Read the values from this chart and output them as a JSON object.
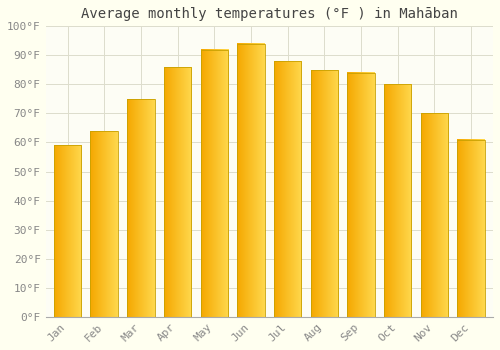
{
  "title": "Average monthly temperatures (°F ) in Mahāban",
  "months": [
    "Jan",
    "Feb",
    "Mar",
    "Apr",
    "May",
    "Jun",
    "Jul",
    "Aug",
    "Sep",
    "Oct",
    "Nov",
    "Dec"
  ],
  "values": [
    59,
    64,
    75,
    86,
    92,
    94,
    88,
    85,
    84,
    80,
    70,
    61
  ],
  "bar_color_left": "#F5A800",
  "bar_color_right": "#FFD84D",
  "bar_edge_color": "#C8A000",
  "background_color": "#FFFFF0",
  "plot_bg_color": "#FDFDF5",
  "grid_color": "#DDDDCC",
  "ylim": [
    0,
    100
  ],
  "yticks": [
    0,
    10,
    20,
    30,
    40,
    50,
    60,
    70,
    80,
    90,
    100
  ],
  "ytick_labels": [
    "0°F",
    "10°F",
    "20°F",
    "30°F",
    "40°F",
    "50°F",
    "60°F",
    "70°F",
    "80°F",
    "90°F",
    "100°F"
  ],
  "title_fontsize": 10,
  "tick_fontsize": 8,
  "title_color": "#444444",
  "tick_color": "#888888",
  "bar_width": 0.75
}
